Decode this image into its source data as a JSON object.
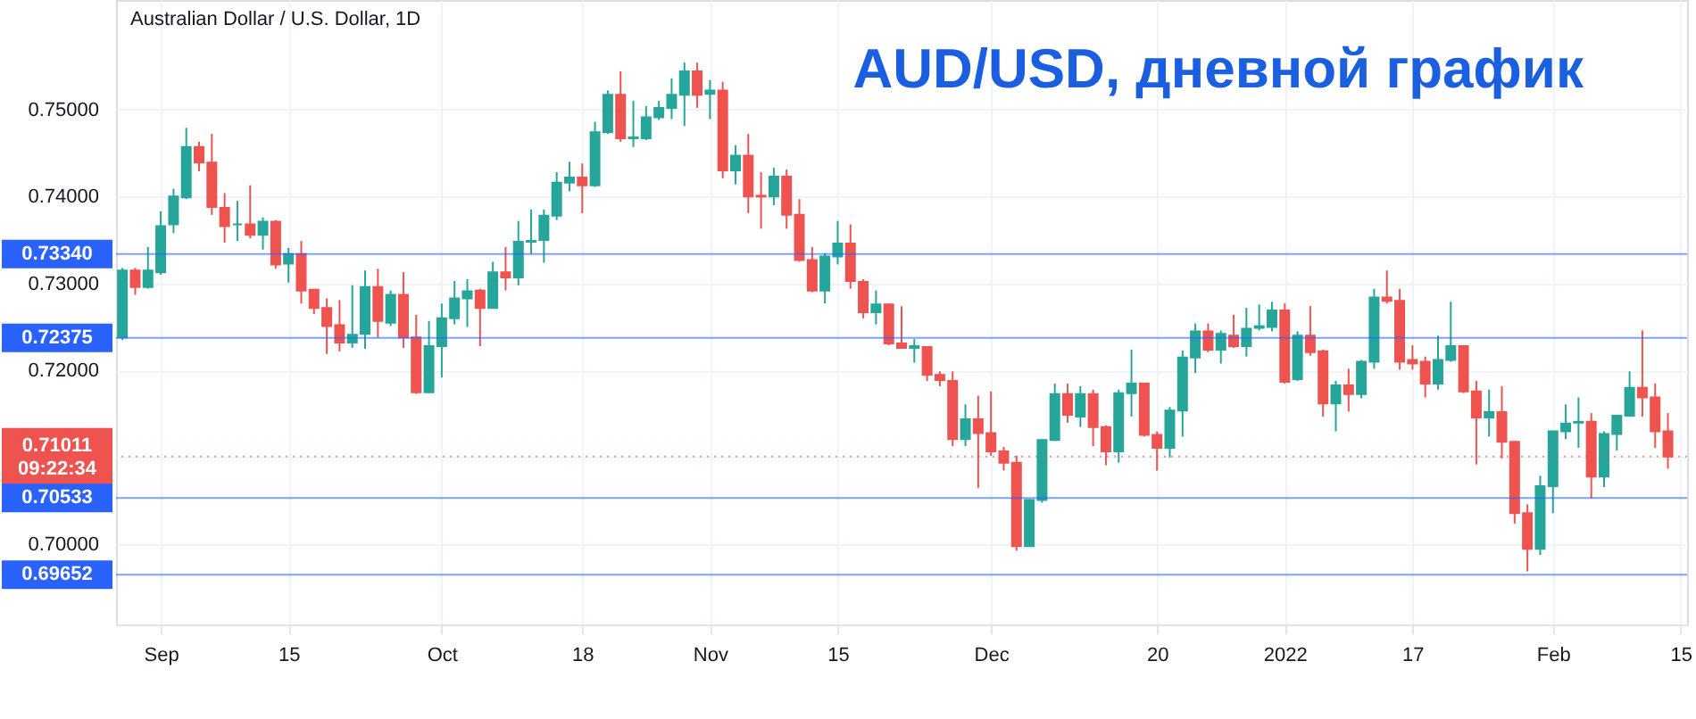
{
  "chart_data": {
    "type": "candlestick",
    "title": "AUD/USD, дневной график",
    "subtitle": "Australian Dollar / U.S. Dollar, 1D",
    "categories": [
      null,
      null,
      null,
      "Sep",
      null,
      null,
      null,
      null,
      null,
      null,
      null,
      null,
      null,
      "15",
      null,
      null,
      null,
      null,
      null,
      null,
      null,
      null,
      null,
      null,
      null,
      "Oct",
      null,
      null,
      null,
      null,
      null,
      null,
      null,
      null,
      null,
      null,
      "18",
      null,
      null,
      null,
      null,
      null,
      null,
      null,
      null,
      null,
      "Nov",
      null,
      null,
      null,
      null,
      null,
      null,
      null,
      null,
      null,
      "15",
      null,
      null,
      null,
      null,
      null,
      null,
      null,
      null,
      null,
      null,
      null,
      "Dec",
      null,
      null,
      null,
      null,
      null,
      null,
      null,
      null,
      null,
      null,
      null,
      null,
      "20",
      null,
      null,
      null,
      null,
      null,
      null,
      null,
      null,
      null,
      "2022",
      null,
      null,
      null,
      null,
      null,
      null,
      null,
      null,
      null,
      "17",
      null,
      null,
      null,
      null,
      null,
      null,
      null,
      null,
      null,
      null,
      "Feb",
      null,
      null,
      null,
      null,
      null,
      null,
      null,
      null,
      null,
      "15"
    ],
    "ohlc": [
      [
        0.7238,
        0.7318,
        0.7235,
        0.7315
      ],
      [
        0.7315,
        0.7318,
        0.7287,
        0.7296
      ],
      [
        0.7296,
        0.7342,
        0.7294,
        0.7315
      ],
      [
        0.7313,
        0.7383,
        0.731,
        0.7366
      ],
      [
        0.7368,
        0.7409,
        0.7358,
        0.74
      ],
      [
        0.7399,
        0.7479,
        0.7397,
        0.7457
      ],
      [
        0.7457,
        0.7463,
        0.7429,
        0.7439
      ],
      [
        0.7439,
        0.7472,
        0.7379,
        0.7388
      ],
      [
        0.7387,
        0.7404,
        0.7347,
        0.7366
      ],
      [
        0.7368,
        0.7395,
        0.7349,
        0.7368
      ],
      [
        0.7368,
        0.7413,
        0.7352,
        0.7356
      ],
      [
        0.7356,
        0.7376,
        0.7339,
        0.7371
      ],
      [
        0.7371,
        0.7373,
        0.7317,
        0.7322
      ],
      [
        0.7323,
        0.7341,
        0.7301,
        0.7334
      ],
      [
        0.7334,
        0.7349,
        0.7277,
        0.7292
      ],
      [
        0.7293,
        0.7294,
        0.7265,
        0.7272
      ],
      [
        0.7272,
        0.7283,
        0.7219,
        0.7251
      ],
      [
        0.7252,
        0.7281,
        0.7222,
        0.7232
      ],
      [
        0.7232,
        0.7298,
        0.7226,
        0.7241
      ],
      [
        0.7242,
        0.7315,
        0.7225,
        0.7296
      ],
      [
        0.7296,
        0.7317,
        0.7238,
        0.7257
      ],
      [
        0.7255,
        0.7292,
        0.7251,
        0.7287
      ],
      [
        0.7287,
        0.7313,
        0.7226,
        0.7238
      ],
      [
        0.7238,
        0.7264,
        0.7173,
        0.7175
      ],
      [
        0.7175,
        0.7257,
        0.7175,
        0.7228
      ],
      [
        0.7228,
        0.7277,
        0.7192,
        0.726
      ],
      [
        0.726,
        0.7303,
        0.7253,
        0.7283
      ],
      [
        0.7283,
        0.7305,
        0.725,
        0.7291
      ],
      [
        0.7292,
        0.7294,
        0.7228,
        0.7272
      ],
      [
        0.7272,
        0.7325,
        0.7272,
        0.7313
      ],
      [
        0.7313,
        0.7342,
        0.7292,
        0.7307
      ],
      [
        0.7307,
        0.7372,
        0.7298,
        0.7348
      ],
      [
        0.7348,
        0.7385,
        0.7334,
        0.7349
      ],
      [
        0.735,
        0.7385,
        0.7324,
        0.7378
      ],
      [
        0.7378,
        0.7428,
        0.7373,
        0.7416
      ],
      [
        0.7416,
        0.744,
        0.7406,
        0.7422
      ],
      [
        0.7422,
        0.7438,
        0.7381,
        0.7413
      ],
      [
        0.7413,
        0.7486,
        0.7411,
        0.7474
      ],
      [
        0.7474,
        0.7522,
        0.7472,
        0.7517
      ],
      [
        0.7517,
        0.7544,
        0.7463,
        0.7467
      ],
      [
        0.7467,
        0.751,
        0.7457,
        0.7468
      ],
      [
        0.7467,
        0.7504,
        0.7465,
        0.7491
      ],
      [
        0.7491,
        0.751,
        0.7488,
        0.7502
      ],
      [
        0.7502,
        0.7536,
        0.7489,
        0.7517
      ],
      [
        0.7517,
        0.7554,
        0.7481,
        0.7544
      ],
      [
        0.7544,
        0.7554,
        0.7502,
        0.7517
      ],
      [
        0.7518,
        0.7534,
        0.7489,
        0.7522
      ],
      [
        0.7522,
        0.7532,
        0.7421,
        0.743
      ],
      [
        0.743,
        0.7459,
        0.7414,
        0.7447
      ],
      [
        0.7447,
        0.7472,
        0.7381,
        0.74
      ],
      [
        0.7401,
        0.7428,
        0.7363,
        0.74
      ],
      [
        0.74,
        0.7433,
        0.739,
        0.7423
      ],
      [
        0.7423,
        0.7431,
        0.7363,
        0.7379
      ],
      [
        0.7379,
        0.7397,
        0.7325,
        0.7327
      ],
      [
        0.7327,
        0.7342,
        0.729,
        0.7292
      ],
      [
        0.7292,
        0.7335,
        0.7277,
        0.7331
      ],
      [
        0.7331,
        0.7372,
        0.7322,
        0.7346
      ],
      [
        0.7346,
        0.7368,
        0.7294,
        0.7303
      ],
      [
        0.7302,
        0.7305,
        0.726,
        0.7267
      ],
      [
        0.7267,
        0.7292,
        0.7253,
        0.7276
      ],
      [
        0.7276,
        0.7277,
        0.7229,
        0.7231
      ],
      [
        0.7231,
        0.7274,
        0.7225,
        0.7226
      ],
      [
        0.7226,
        0.7236,
        0.7209,
        0.7228
      ],
      [
        0.7227,
        0.7228,
        0.7188,
        0.7195
      ],
      [
        0.7195,
        0.7199,
        0.7182,
        0.7189
      ],
      [
        0.7188,
        0.7199,
        0.7113,
        0.7121
      ],
      [
        0.7121,
        0.7161,
        0.7113,
        0.7144
      ],
      [
        0.7144,
        0.7171,
        0.7065,
        0.7128
      ],
      [
        0.7128,
        0.7176,
        0.7102,
        0.7107
      ],
      [
        0.7107,
        0.7112,
        0.7085,
        0.7094
      ],
      [
        0.7094,
        0.7102,
        0.6993,
        0.6998
      ],
      [
        0.6998,
        0.7052,
        0.6998,
        0.7051
      ],
      [
        0.7051,
        0.7121,
        0.7048,
        0.712
      ],
      [
        0.712,
        0.7185,
        0.7119,
        0.7173
      ],
      [
        0.7173,
        0.7185,
        0.714,
        0.7149
      ],
      [
        0.7147,
        0.7182,
        0.7135,
        0.7173
      ],
      [
        0.7173,
        0.7178,
        0.7113,
        0.7135
      ],
      [
        0.7135,
        0.7137,
        0.7091,
        0.7107
      ],
      [
        0.7107,
        0.7178,
        0.7094,
        0.7174
      ],
      [
        0.7174,
        0.7224,
        0.7147,
        0.7185
      ],
      [
        0.7185,
        0.7185,
        0.7124,
        0.7126
      ],
      [
        0.7126,
        0.713,
        0.7085,
        0.7111
      ],
      [
        0.7111,
        0.7158,
        0.71,
        0.7154
      ],
      [
        0.7154,
        0.7223,
        0.7124,
        0.7215
      ],
      [
        0.7215,
        0.7254,
        0.7197,
        0.7245
      ],
      [
        0.7245,
        0.7254,
        0.7221,
        0.7224
      ],
      [
        0.7224,
        0.7246,
        0.7208,
        0.7242
      ],
      [
        0.724,
        0.7264,
        0.7226,
        0.7228
      ],
      [
        0.7228,
        0.7272,
        0.7216,
        0.7248
      ],
      [
        0.7249,
        0.7276,
        0.7246,
        0.7251
      ],
      [
        0.725,
        0.7279,
        0.7245,
        0.7269
      ],
      [
        0.7269,
        0.7277,
        0.7185,
        0.7187
      ],
      [
        0.719,
        0.7245,
        0.7188,
        0.724
      ],
      [
        0.724,
        0.7274,
        0.7217,
        0.7221
      ],
      [
        0.7222,
        0.7224,
        0.7147,
        0.7162
      ],
      [
        0.7162,
        0.7188,
        0.713,
        0.7183
      ],
      [
        0.7183,
        0.7202,
        0.7153,
        0.7173
      ],
      [
        0.7173,
        0.7212,
        0.7168,
        0.721
      ],
      [
        0.721,
        0.7294,
        0.7202,
        0.7284
      ],
      [
        0.7284,
        0.7315,
        0.7277,
        0.728
      ],
      [
        0.728,
        0.7294,
        0.7201,
        0.721
      ],
      [
        0.7212,
        0.7229,
        0.7201,
        0.7208
      ],
      [
        0.721,
        0.7216,
        0.7169,
        0.7185
      ],
      [
        0.7185,
        0.724,
        0.7178,
        0.7212
      ],
      [
        0.7212,
        0.7279,
        0.721,
        0.7228
      ],
      [
        0.7228,
        0.7228,
        0.7174,
        0.7176
      ],
      [
        0.7176,
        0.7188,
        0.7092,
        0.7146
      ],
      [
        0.7146,
        0.7178,
        0.7124,
        0.7152
      ],
      [
        0.7152,
        0.7182,
        0.7099,
        0.7118
      ],
      [
        0.7118,
        0.7118,
        0.7024,
        0.7036
      ],
      [
        0.7036,
        0.7046,
        0.6969,
        0.6995
      ],
      [
        0.6995,
        0.7079,
        0.6988,
        0.7067
      ],
      [
        0.7067,
        0.713,
        0.7036,
        0.713
      ],
      [
        0.713,
        0.7161,
        0.7121,
        0.7139
      ],
      [
        0.714,
        0.7169,
        0.7111,
        0.7141
      ],
      [
        0.7141,
        0.7151,
        0.7053,
        0.7078
      ],
      [
        0.7078,
        0.713,
        0.7066,
        0.7127
      ],
      [
        0.7127,
        0.7148,
        0.7108,
        0.7148
      ],
      [
        0.7148,
        0.7199,
        0.7148,
        0.718
      ],
      [
        0.718,
        0.7246,
        0.7147,
        0.7169
      ],
      [
        0.7169,
        0.7185,
        0.7111,
        0.713
      ],
      [
        0.713,
        0.7151,
        0.7087,
        0.7101
      ],
      null
    ],
    "colors": [
      "#26a69a",
      "#ef5350",
      "#26a69a",
      "#26a69a",
      "#26a69a",
      "#26a69a",
      "#ef5350",
      "#ef5350",
      "#ef5350",
      "#26a69a",
      "#ef5350",
      "#26a69a",
      "#ef5350",
      "#26a69a",
      "#ef5350",
      "#ef5350",
      "#ef5350",
      "#ef5350",
      "#26a69a",
      "#26a69a",
      "#ef5350",
      "#26a69a",
      "#ef5350",
      "#ef5350",
      "#26a69a",
      "#26a69a",
      "#26a69a",
      "#26a69a",
      "#ef5350",
      "#26a69a",
      "#ef5350",
      "#26a69a",
      "#26a69a",
      "#26a69a",
      "#26a69a",
      "#26a69a",
      "#ef5350",
      "#26a69a",
      "#26a69a",
      "#ef5350",
      "#26a69a",
      "#26a69a",
      "#26a69a",
      "#26a69a",
      "#26a69a",
      "#ef5350",
      "#26a69a",
      "#ef5350",
      "#26a69a",
      "#ef5350",
      "#ef5350",
      "#26a69a",
      "#ef5350",
      "#ef5350",
      "#ef5350",
      "#26a69a",
      "#26a69a",
      "#ef5350",
      "#ef5350",
      "#26a69a",
      "#ef5350",
      "#ef5350",
      "#26a69a",
      "#ef5350",
      "#ef5350",
      "#ef5350",
      "#26a69a",
      "#ef5350",
      "#ef5350",
      "#ef5350",
      "#ef5350",
      "#26a69a",
      "#26a69a",
      "#26a69a",
      "#ef5350",
      "#26a69a",
      "#ef5350",
      "#ef5350",
      "#26a69a",
      "#26a69a",
      "#ef5350",
      "#ef5350",
      "#26a69a",
      "#26a69a",
      "#26a69a",
      "#ef5350",
      "#26a69a",
      "#ef5350",
      "#26a69a",
      "#26a69a",
      "#26a69a",
      "#ef5350",
      "#26a69a",
      "#ef5350",
      "#ef5350",
      "#26a69a",
      "#ef5350",
      "#26a69a",
      "#26a69a",
      "#ef5350",
      "#ef5350",
      "#ef5350",
      "#ef5350",
      "#26a69a",
      "#26a69a",
      "#ef5350",
      "#ef5350",
      "#26a69a",
      "#ef5350",
      "#ef5350",
      "#ef5350",
      "#26a69a",
      "#26a69a",
      "#26a69a",
      "#26a69a",
      "#ef5350",
      "#26a69a",
      "#26a69a",
      "#26a69a",
      "#ef5350",
      "#ef5350",
      "#ef5350",
      null
    ],
    "ylim": [
      0.6908,
      0.7626
    ],
    "yticks": [
      {
        "value": 0.7,
        "label": "0.70000"
      },
      {
        "value": 0.71,
        "label": null
      },
      {
        "value": 0.72,
        "label": "0.72000"
      },
      {
        "value": 0.73,
        "label": "0.73000"
      },
      {
        "value": 0.74,
        "label": "0.74000"
      },
      {
        "value": 0.75,
        "label": "0.75000"
      }
    ],
    "ref_lines": [
      {
        "axis": "y",
        "value": 0.7334,
        "label": "0.73340",
        "color": "#2962ff"
      },
      {
        "axis": "y",
        "value": 0.72375,
        "label": "0.72375",
        "color": "#2962ff"
      },
      {
        "axis": "y",
        "value": 0.71011,
        "label": "0.71011\n09:22:34",
        "color": "#ef5350",
        "line_style": "dotted"
      },
      {
        "axis": "y",
        "value": 0.70533,
        "label": "0.70533",
        "color": "#2962ff"
      },
      {
        "axis": "y",
        "value": 0.69652,
        "label": "0.69652",
        "color": "#2962ff"
      }
    ],
    "grid": true
  }
}
